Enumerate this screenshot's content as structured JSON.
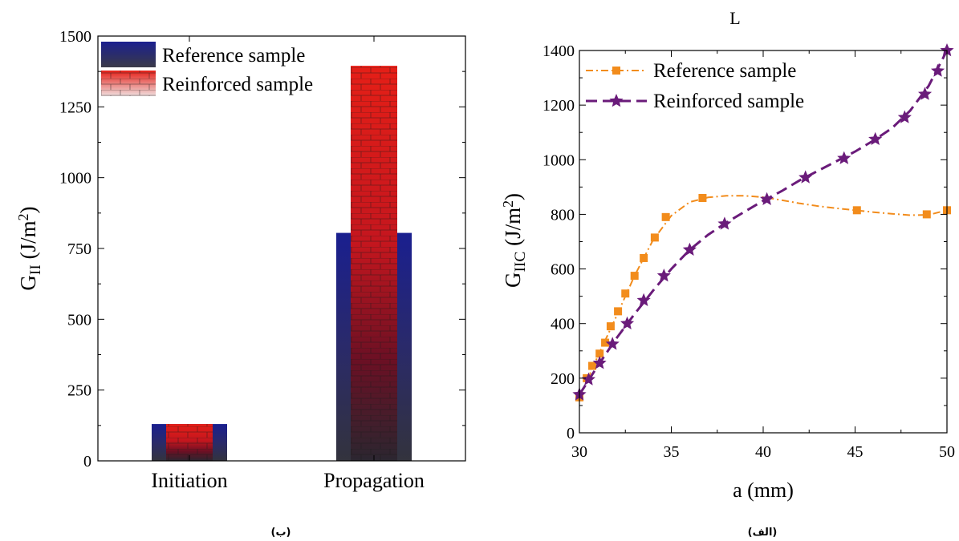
{
  "captions": {
    "left": "(ب)",
    "right": "(الف)"
  },
  "chart_data": [
    {
      "type": "bar",
      "categories": [
        "Initiation",
        "Propagation"
      ],
      "series": [
        {
          "name": "Reference sample",
          "values": [
            130,
            805
          ],
          "color": "#1a1f8f",
          "pattern": "solid gradient blue to dark gray"
        },
        {
          "name": "Reinforced sample",
          "values": [
            130,
            1395
          ],
          "color": "#e0261a",
          "pattern": "hexagon texture, red to dark"
        }
      ],
      "title": "",
      "xlabel": "",
      "ylabel_main": "G",
      "ylabel_sub": "II",
      "ylabel_unit": " (J/m",
      "ylabel_sup": "2",
      "ylabel_close": ")",
      "ylim": [
        0,
        1500
      ],
      "yticks": [
        0,
        250,
        500,
        750,
        1000,
        1250,
        1500
      ],
      "legend_placement": "top-left",
      "grid": false
    },
    {
      "type": "line",
      "title": "L",
      "xlabel": "a (mm)",
      "ylabel_main": "G",
      "ylabel_sub": "IIC",
      "ylabel_unit": " (J/m",
      "ylabel_sup": "2",
      "ylabel_close": ")",
      "xlim": [
        30,
        50
      ],
      "ylim": [
        0,
        1400
      ],
      "xticks": [
        30,
        35,
        40,
        45,
        50
      ],
      "yticks": [
        0,
        200,
        400,
        600,
        800,
        1000,
        1200,
        1400
      ],
      "legend_placement": "top-left",
      "grid": false,
      "series": [
        {
          "name": "Reference sample",
          "color": "#f28c1c",
          "marker": "square",
          "line_style": "dash-dot",
          "marker_points": [
            [
              30.0,
              130
            ],
            [
              30.4,
              200
            ],
            [
              30.7,
              245
            ],
            [
              31.1,
              290
            ],
            [
              31.4,
              330
            ],
            [
              31.7,
              390
            ],
            [
              32.1,
              445
            ],
            [
              32.5,
              510
            ],
            [
              33.0,
              575
            ],
            [
              33.5,
              640
            ],
            [
              34.1,
              715
            ],
            [
              34.7,
              790
            ],
            [
              36.7,
              860
            ],
            [
              45.1,
              815
            ],
            [
              48.9,
              800
            ],
            [
              50.0,
              815
            ]
          ],
          "curve": [
            [
              30.0,
              130
            ],
            [
              31.0,
              280
            ],
            [
              32.0,
              425
            ],
            [
              33.0,
              575
            ],
            [
              34.0,
              705
            ],
            [
              35.0,
              795
            ],
            [
              36.0,
              845
            ],
            [
              37.0,
              862
            ],
            [
              38.0,
              868
            ],
            [
              39.0,
              868
            ],
            [
              40.0,
              863
            ],
            [
              41.0,
              852
            ],
            [
              42.0,
              840
            ],
            [
              43.0,
              830
            ],
            [
              44.0,
              822
            ],
            [
              45.0,
              815
            ],
            [
              46.0,
              808
            ],
            [
              47.0,
              802
            ],
            [
              48.0,
              797
            ],
            [
              49.0,
              798
            ],
            [
              50.0,
              815
            ]
          ]
        },
        {
          "name": "Reinforced sample",
          "color": "#6a1b7a",
          "marker": "star",
          "line_style": "dashed",
          "marker_points": [
            [
              30.0,
              140
            ],
            [
              30.5,
              195
            ],
            [
              31.1,
              255
            ],
            [
              31.8,
              325
            ],
            [
              32.6,
              400
            ],
            [
              33.5,
              485
            ],
            [
              34.6,
              575
            ],
            [
              36.0,
              670
            ],
            [
              37.9,
              765
            ],
            [
              40.2,
              855
            ],
            [
              42.3,
              935
            ],
            [
              44.4,
              1005
            ],
            [
              46.1,
              1075
            ],
            [
              47.7,
              1155
            ],
            [
              48.8,
              1240
            ],
            [
              49.5,
              1325
            ],
            [
              50.0,
              1400
            ]
          ],
          "curve": [
            [
              30.0,
              140
            ],
            [
              31.0,
              245
            ],
            [
              32.0,
              345
            ],
            [
              33.0,
              435
            ],
            [
              34.0,
              520
            ],
            [
              35.0,
              600
            ],
            [
              36.0,
              670
            ],
            [
              37.0,
              725
            ],
            [
              38.0,
              770
            ],
            [
              39.0,
              810
            ],
            [
              40.0,
              850
            ],
            [
              41.0,
              885
            ],
            [
              42.0,
              925
            ],
            [
              43.0,
              960
            ],
            [
              44.0,
              995
            ],
            [
              45.0,
              1030
            ],
            [
              46.0,
              1070
            ],
            [
              47.0,
              1115
            ],
            [
              48.0,
              1180
            ],
            [
              49.0,
              1270
            ],
            [
              50.0,
              1400
            ]
          ]
        }
      ]
    }
  ]
}
